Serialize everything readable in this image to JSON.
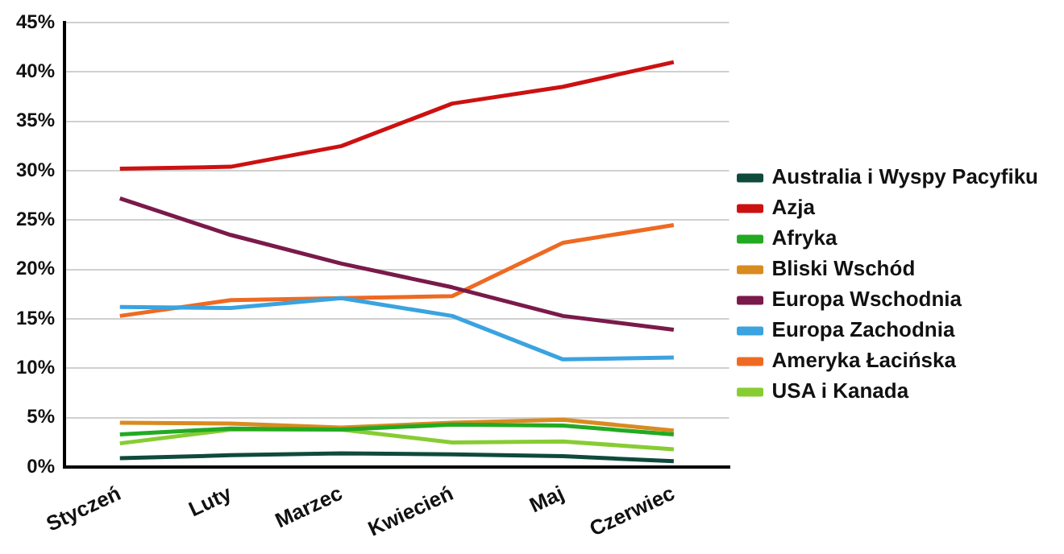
{
  "chart_data": {
    "type": "line",
    "categories": [
      "Styczeń",
      "Luty",
      "Marzec",
      "Kwiecień",
      "Maj",
      "Czerwiec"
    ],
    "series": [
      {
        "name": "Australia i Wyspy Pacyfiku",
        "color": "#0f4a3c",
        "values": [
          0.9,
          1.2,
          1.4,
          1.3,
          1.1,
          0.6
        ]
      },
      {
        "name": "Azja",
        "color": "#cc1111",
        "values": [
          30.2,
          30.4,
          32.5,
          36.8,
          38.5,
          41
        ]
      },
      {
        "name": "Afryka",
        "color": "#22aa22",
        "values": [
          3.3,
          3.9,
          3.8,
          4.3,
          4.2,
          3.3
        ]
      },
      {
        "name": "Bliski Wschód",
        "color": "#d98b1f",
        "values": [
          4.5,
          4.4,
          4,
          4.5,
          4.8,
          3.7
        ]
      },
      {
        "name": "Europa Wschodnia",
        "color": "#7a1a4a",
        "values": [
          27.2,
          23.5,
          20.6,
          18.2,
          15.3,
          13.9
        ]
      },
      {
        "name": "Europa Zachodnia",
        "color": "#3aa3e0",
        "values": [
          16.2,
          16.1,
          17.1,
          15.3,
          10.9,
          11.1
        ]
      },
      {
        "name": "Ameryka Łacińska",
        "color": "#ee6a22",
        "values": [
          15.3,
          16.9,
          17.1,
          17.3,
          22.7,
          24.5
        ]
      },
      {
        "name": "USA i Kanada",
        "color": "#88cc33",
        "values": [
          2.4,
          3.8,
          3.8,
          2.5,
          2.6,
          1.8
        ]
      }
    ],
    "ylim": [
      0,
      45
    ],
    "yticks": [
      {
        "value": 0,
        "label": "0%"
      },
      {
        "value": 5,
        "label": "5%"
      },
      {
        "value": 10,
        "label": "10%"
      },
      {
        "value": 15,
        "label": "15%"
      },
      {
        "value": 20,
        "label": "20%"
      },
      {
        "value": 25,
        "label": "25%"
      },
      {
        "value": 30,
        "label": "30%"
      },
      {
        "value": 35,
        "label": "35%"
      },
      {
        "value": 40,
        "label": "40%"
      },
      {
        "value": 45,
        "label": "45%"
      }
    ],
    "grid": "y",
    "legend": "right",
    "marker": "none",
    "line_style": "solid"
  }
}
